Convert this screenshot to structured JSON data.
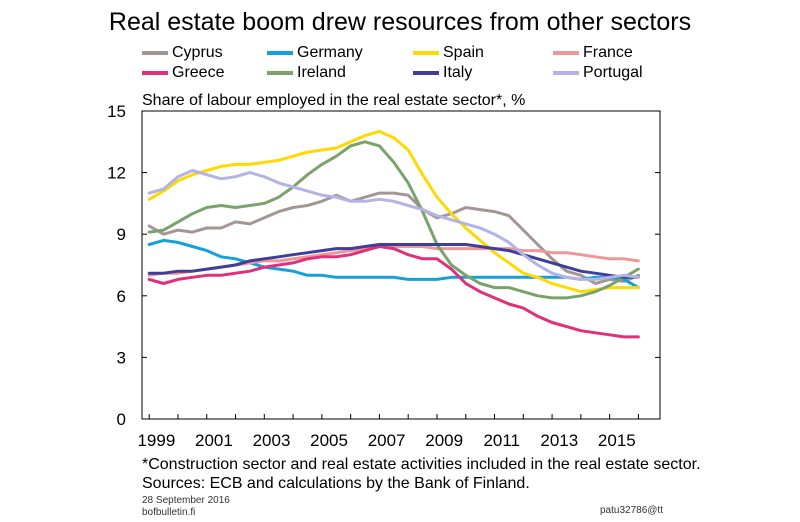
{
  "header": {
    "title": "Real estate boom drew resources from other sectors",
    "subtitle": "Share of labour employed in the real estate sector*, %"
  },
  "footer": {
    "note": "*Construction sector and real estate activities included in the real estate sector.",
    "sources": "Sources: ECB and calculations by the Bank of Finland.",
    "date": "28 September 2016",
    "site": "bofbulletin.fi",
    "code": "patu32786@tt"
  },
  "chart_data": {
    "type": "line",
    "title": "Real estate boom drew resources from other sectors",
    "ylabel": "Share of labour employed in the real estate sector*, %",
    "xlabel": "",
    "xlim": [
      1998.75,
      2016.75
    ],
    "ylim": [
      0,
      15
    ],
    "yticks": [
      "0",
      "3",
      "6",
      "9",
      "12",
      "15"
    ],
    "xticks": [
      "1999",
      "2001",
      "2003",
      "2005",
      "2007",
      "2009",
      "2011",
      "2013",
      "2015"
    ],
    "grid": false,
    "legend": "top",
    "series": [
      {
        "name": "Cyprus",
        "color": "#a59696",
        "x": [
          1999.0,
          1999.5,
          2000.0,
          2000.5,
          2001.0,
          2001.5,
          2002.0,
          2002.5,
          2003.0,
          2003.5,
          2004.0,
          2004.5,
          2005.0,
          2005.5,
          2006.0,
          2006.5,
          2007.0,
          2007.5,
          2008.0,
          2008.5,
          2009.0,
          2009.5,
          2010.0,
          2010.5,
          2011.0,
          2011.5,
          2012.0,
          2012.5,
          2013.0,
          2013.5,
          2014.0,
          2014.5,
          2015.0,
          2015.5,
          2016.0
        ],
        "y": [
          9.4,
          9.0,
          9.2,
          9.1,
          9.3,
          9.3,
          9.6,
          9.5,
          9.8,
          10.1,
          10.3,
          10.4,
          10.6,
          10.9,
          10.6,
          10.8,
          11.0,
          11.0,
          10.9,
          10.2,
          9.8,
          10.0,
          10.3,
          10.2,
          10.1,
          9.9,
          9.2,
          8.5,
          7.8,
          7.2,
          7.0,
          6.6,
          6.8,
          6.7,
          7.0
        ]
      },
      {
        "name": "Germany",
        "color": "#12a1d8",
        "x": [
          1999.0,
          1999.5,
          2000.0,
          2000.5,
          2001.0,
          2001.5,
          2002.0,
          2002.5,
          2003.0,
          2003.5,
          2004.0,
          2004.5,
          2005.0,
          2005.5,
          2006.0,
          2006.5,
          2007.0,
          2007.5,
          2008.0,
          2008.5,
          2009.0,
          2009.5,
          2010.0,
          2010.5,
          2011.0,
          2011.5,
          2012.0,
          2012.5,
          2013.0,
          2013.5,
          2014.0,
          2014.5,
          2015.0,
          2015.5,
          2016.0
        ],
        "y": [
          8.5,
          8.7,
          8.6,
          8.4,
          8.2,
          7.9,
          7.8,
          7.6,
          7.4,
          7.3,
          7.2,
          7.0,
          7.0,
          6.9,
          6.9,
          6.9,
          6.9,
          6.9,
          6.8,
          6.8,
          6.8,
          6.9,
          6.9,
          6.9,
          6.9,
          6.9,
          6.9,
          6.9,
          6.9,
          6.9,
          6.8,
          6.9,
          6.9,
          6.8,
          6.4
        ]
      },
      {
        "name": "Spain",
        "color": "#ffd900",
        "x": [
          1999.0,
          1999.5,
          2000.0,
          2000.5,
          2001.0,
          2001.5,
          2002.0,
          2002.5,
          2003.0,
          2003.5,
          2004.0,
          2004.5,
          2005.0,
          2005.5,
          2006.0,
          2006.5,
          2007.0,
          2007.5,
          2008.0,
          2008.5,
          2009.0,
          2009.5,
          2010.0,
          2010.5,
          2011.0,
          2011.5,
          2012.0,
          2012.5,
          2013.0,
          2013.5,
          2014.0,
          2014.5,
          2015.0,
          2015.5,
          2016.0
        ],
        "y": [
          10.7,
          11.1,
          11.6,
          11.9,
          12.1,
          12.3,
          12.4,
          12.4,
          12.5,
          12.6,
          12.8,
          13.0,
          13.1,
          13.2,
          13.5,
          13.8,
          14.0,
          13.7,
          13.1,
          11.9,
          10.8,
          10.0,
          9.3,
          8.7,
          8.1,
          7.6,
          7.1,
          6.9,
          6.6,
          6.4,
          6.2,
          6.3,
          6.4,
          6.4,
          6.4
        ]
      },
      {
        "name": "France",
        "color": "#f09696",
        "x": [
          1999.0,
          1999.5,
          2000.0,
          2000.5,
          2001.0,
          2001.5,
          2002.0,
          2002.5,
          2003.0,
          2003.5,
          2004.0,
          2004.5,
          2005.0,
          2005.5,
          2006.0,
          2006.5,
          2007.0,
          2007.5,
          2008.0,
          2008.5,
          2009.0,
          2009.5,
          2010.0,
          2010.5,
          2011.0,
          2011.5,
          2012.0,
          2012.5,
          2013.0,
          2013.5,
          2014.0,
          2014.5,
          2015.0,
          2015.5,
          2016.0
        ],
        "y": [
          7.0,
          7.1,
          7.1,
          7.2,
          7.3,
          7.4,
          7.5,
          7.6,
          7.7,
          7.7,
          7.8,
          7.9,
          8.0,
          8.1,
          8.2,
          8.3,
          8.4,
          8.4,
          8.4,
          8.4,
          8.3,
          8.3,
          8.3,
          8.3,
          8.3,
          8.3,
          8.2,
          8.2,
          8.1,
          8.1,
          8.0,
          7.9,
          7.8,
          7.8,
          7.7
        ]
      },
      {
        "name": "Greece",
        "color": "#e0307a",
        "x": [
          1999.0,
          1999.5,
          2000.0,
          2000.5,
          2001.0,
          2001.5,
          2002.0,
          2002.5,
          2003.0,
          2003.5,
          2004.0,
          2004.5,
          2005.0,
          2005.5,
          2006.0,
          2006.5,
          2007.0,
          2007.5,
          2008.0,
          2008.5,
          2009.0,
          2009.5,
          2010.0,
          2010.5,
          2011.0,
          2011.5,
          2012.0,
          2012.5,
          2013.0,
          2013.5,
          2014.0,
          2014.5,
          2015.0,
          2015.5,
          2016.0
        ],
        "y": [
          6.8,
          6.6,
          6.8,
          6.9,
          7.0,
          7.0,
          7.1,
          7.2,
          7.4,
          7.5,
          7.6,
          7.8,
          7.9,
          7.9,
          8.0,
          8.2,
          8.4,
          8.3,
          8.0,
          7.8,
          7.8,
          7.3,
          6.6,
          6.2,
          5.9,
          5.6,
          5.4,
          5.0,
          4.7,
          4.5,
          4.3,
          4.2,
          4.1,
          4.0,
          4.0
        ]
      },
      {
        "name": "Ireland",
        "color": "#79a36b",
        "x": [
          1999.0,
          1999.5,
          2000.0,
          2000.5,
          2001.0,
          2001.5,
          2002.0,
          2002.5,
          2003.0,
          2003.5,
          2004.0,
          2004.5,
          2005.0,
          2005.5,
          2006.0,
          2006.5,
          2007.0,
          2007.5,
          2008.0,
          2008.5,
          2009.0,
          2009.5,
          2010.0,
          2010.5,
          2011.0,
          2011.5,
          2012.0,
          2012.5,
          2013.0,
          2013.5,
          2014.0,
          2014.5,
          2015.0,
          2015.5,
          2016.0
        ],
        "y": [
          9.1,
          9.2,
          9.6,
          10.0,
          10.3,
          10.4,
          10.3,
          10.4,
          10.5,
          10.8,
          11.3,
          11.9,
          12.4,
          12.8,
          13.3,
          13.5,
          13.3,
          12.5,
          11.5,
          10.1,
          8.5,
          7.5,
          7.0,
          6.6,
          6.4,
          6.4,
          6.2,
          6.0,
          5.9,
          5.9,
          6.0,
          6.2,
          6.5,
          6.9,
          7.3
        ]
      },
      {
        "name": "Italy",
        "color": "#3f3f99",
        "x": [
          1999.0,
          1999.5,
          2000.0,
          2000.5,
          2001.0,
          2001.5,
          2002.0,
          2002.5,
          2003.0,
          2003.5,
          2004.0,
          2004.5,
          2005.0,
          2005.5,
          2006.0,
          2006.5,
          2007.0,
          2007.5,
          2008.0,
          2008.5,
          2009.0,
          2009.5,
          2010.0,
          2010.5,
          2011.0,
          2011.5,
          2012.0,
          2012.5,
          2013.0,
          2013.5,
          2014.0,
          2014.5,
          2015.0,
          2015.5,
          2016.0
        ],
        "y": [
          7.1,
          7.1,
          7.2,
          7.2,
          7.3,
          7.4,
          7.5,
          7.7,
          7.8,
          7.9,
          8.0,
          8.1,
          8.2,
          8.3,
          8.3,
          8.4,
          8.5,
          8.5,
          8.5,
          8.5,
          8.5,
          8.5,
          8.5,
          8.4,
          8.3,
          8.2,
          8.0,
          7.8,
          7.6,
          7.4,
          7.2,
          7.1,
          7.0,
          6.9,
          6.9
        ]
      },
      {
        "name": "Portugal",
        "color": "#b3b3e6",
        "x": [
          1999.0,
          1999.5,
          2000.0,
          2000.5,
          2001.0,
          2001.5,
          2002.0,
          2002.5,
          2003.0,
          2003.5,
          2004.0,
          2004.5,
          2005.0,
          2005.5,
          2006.0,
          2006.5,
          2007.0,
          2007.5,
          2008.0,
          2008.5,
          2009.0,
          2009.5,
          2010.0,
          2010.5,
          2011.0,
          2011.5,
          2012.0,
          2012.5,
          2013.0,
          2013.5,
          2014.0,
          2014.5,
          2015.0,
          2015.5,
          2016.0
        ],
        "y": [
          11.0,
          11.2,
          11.8,
          12.1,
          11.9,
          11.7,
          11.8,
          12.0,
          11.8,
          11.5,
          11.3,
          11.1,
          10.9,
          10.8,
          10.6,
          10.6,
          10.7,
          10.6,
          10.4,
          10.2,
          9.9,
          9.7,
          9.5,
          9.3,
          9.0,
          8.6,
          8.0,
          7.5,
          7.1,
          6.9,
          6.8,
          6.8,
          6.9,
          7.0,
          6.9
        ]
      }
    ]
  }
}
